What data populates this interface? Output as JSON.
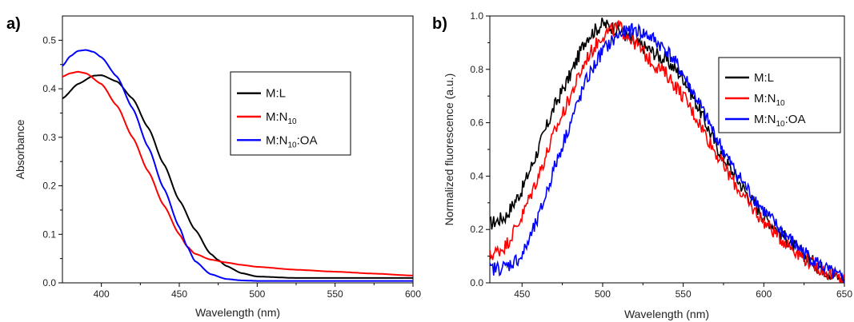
{
  "chart_data": [
    {
      "type": "line",
      "panel_label": "a)",
      "xlabel": "Wavelength (nm)",
      "ylabel": "Absorbance",
      "xlim": [
        375,
        600
      ],
      "ylim": [
        0,
        0.55
      ],
      "xticks": [
        400,
        450,
        500,
        550,
        600
      ],
      "yticks": [
        0.0,
        0.1,
        0.2,
        0.3,
        0.4,
        0.5
      ],
      "legend_position": "upper-right",
      "series": [
        {
          "name": "M:L",
          "color": "#000000",
          "x": [
            375,
            385,
            395,
            400,
            410,
            420,
            430,
            440,
            450,
            460,
            470,
            475,
            480,
            490,
            500,
            525,
            550,
            575,
            600
          ],
          "y": [
            0.38,
            0.41,
            0.427,
            0.428,
            0.415,
            0.38,
            0.32,
            0.245,
            0.17,
            0.11,
            0.06,
            0.047,
            0.035,
            0.02,
            0.013,
            0.01,
            0.01,
            0.01,
            0.01
          ]
        },
        {
          "name": "M:N10",
          "color": "#ff0000",
          "x": [
            375,
            380,
            385,
            390,
            400,
            410,
            420,
            430,
            440,
            450,
            455,
            460,
            470,
            480,
            490,
            500,
            525,
            550,
            575,
            600
          ],
          "y": [
            0.425,
            0.432,
            0.435,
            0.432,
            0.41,
            0.365,
            0.3,
            0.23,
            0.16,
            0.1,
            0.075,
            0.06,
            0.048,
            0.042,
            0.037,
            0.033,
            0.027,
            0.023,
            0.019,
            0.015
          ]
        },
        {
          "name": "M:N10:OA",
          "color": "#0000ff",
          "x": [
            375,
            380,
            385,
            390,
            395,
            400,
            410,
            420,
            430,
            440,
            450,
            455,
            460,
            470,
            480,
            490,
            500,
            525,
            550,
            575,
            600
          ],
          "y": [
            0.447,
            0.467,
            0.478,
            0.48,
            0.476,
            0.465,
            0.425,
            0.36,
            0.28,
            0.195,
            0.115,
            0.075,
            0.045,
            0.018,
            0.008,
            0.005,
            0.004,
            0.004,
            0.004,
            0.004,
            0.004
          ]
        }
      ]
    },
    {
      "type": "line",
      "panel_label": "b)",
      "xlabel": "Wavelength (nm)",
      "ylabel": "Normalized fluorescence (a.u.)",
      "xlim": [
        430,
        650
      ],
      "ylim": [
        0,
        1.0
      ],
      "xticks": [
        450,
        500,
        550,
        600,
        650
      ],
      "yticks": [
        0.0,
        0.2,
        0.4,
        0.6,
        0.8,
        1.0
      ],
      "legend_position": "upper-right",
      "series": [
        {
          "name": "M:L",
          "color": "#000000",
          "x": [
            430,
            440,
            450,
            460,
            470,
            480,
            490,
            500,
            510,
            520,
            530,
            540,
            550,
            560,
            570,
            580,
            590,
            600,
            610,
            620,
            630,
            640,
            650
          ],
          "y": [
            0.22,
            0.25,
            0.35,
            0.5,
            0.66,
            0.78,
            0.92,
            0.97,
            0.95,
            0.9,
            0.87,
            0.83,
            0.77,
            0.65,
            0.52,
            0.42,
            0.33,
            0.25,
            0.19,
            0.13,
            0.08,
            0.04,
            0.01
          ]
        },
        {
          "name": "M:N10",
          "color": "#ff0000",
          "x": [
            430,
            440,
            450,
            460,
            470,
            480,
            490,
            500,
            510,
            520,
            530,
            540,
            550,
            560,
            570,
            580,
            590,
            600,
            610,
            620,
            630,
            640,
            650
          ],
          "y": [
            0.1,
            0.14,
            0.25,
            0.4,
            0.56,
            0.7,
            0.84,
            0.93,
            0.96,
            0.9,
            0.83,
            0.78,
            0.7,
            0.6,
            0.49,
            0.39,
            0.3,
            0.23,
            0.17,
            0.12,
            0.07,
            0.035,
            0.01
          ]
        },
        {
          "name": "M:N10:OA",
          "color": "#0000ff",
          "x": [
            430,
            440,
            450,
            460,
            470,
            480,
            490,
            500,
            510,
            520,
            530,
            540,
            550,
            560,
            570,
            580,
            590,
            600,
            610,
            620,
            630,
            640,
            650
          ],
          "y": [
            0.05,
            0.06,
            0.1,
            0.24,
            0.43,
            0.6,
            0.76,
            0.87,
            0.93,
            0.95,
            0.92,
            0.87,
            0.78,
            0.67,
            0.55,
            0.44,
            0.35,
            0.27,
            0.2,
            0.14,
            0.09,
            0.045,
            0.01
          ]
        }
      ]
    }
  ]
}
